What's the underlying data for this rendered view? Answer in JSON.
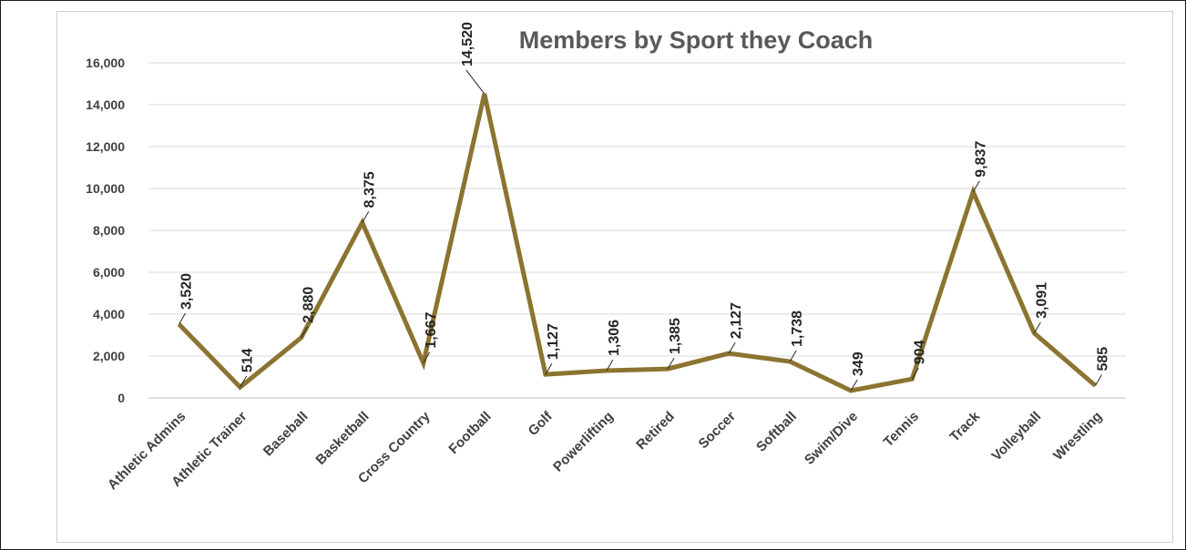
{
  "chart_data": {
    "type": "line",
    "title": "Members by Sport they Coach",
    "xlabel": "",
    "ylabel": "",
    "categories": [
      "Athletic Admins",
      "Athletic Trainer",
      "Baseball",
      "Basketball",
      "Cross Country",
      "Football",
      "Golf",
      "Powerlifting",
      "Retired",
      "Soccer",
      "Softball",
      "Swim/Dive",
      "Tennis",
      "Track",
      "Volleyball",
      "Wrestling"
    ],
    "values": [
      3520,
      514,
      2880,
      8375,
      1667,
      14520,
      1127,
      1306,
      1385,
      2127,
      1738,
      349,
      904,
      9837,
      3091,
      585
    ],
    "data_labels": [
      "3,520",
      "514",
      "2,880",
      "8,375",
      "1,667",
      "14,520",
      "1,127",
      "1,306",
      "1,385",
      "2,127",
      "1,738",
      "349",
      "904",
      "9,837",
      "3,091",
      "585"
    ],
    "yticks": [
      "0",
      "2,000",
      "4,000",
      "6,000",
      "8,000",
      "10,000",
      "12,000",
      "14,000",
      "16,000"
    ],
    "ylim": [
      0,
      16000
    ],
    "grid": true,
    "legend": "none",
    "series_color": "#8b7430"
  }
}
